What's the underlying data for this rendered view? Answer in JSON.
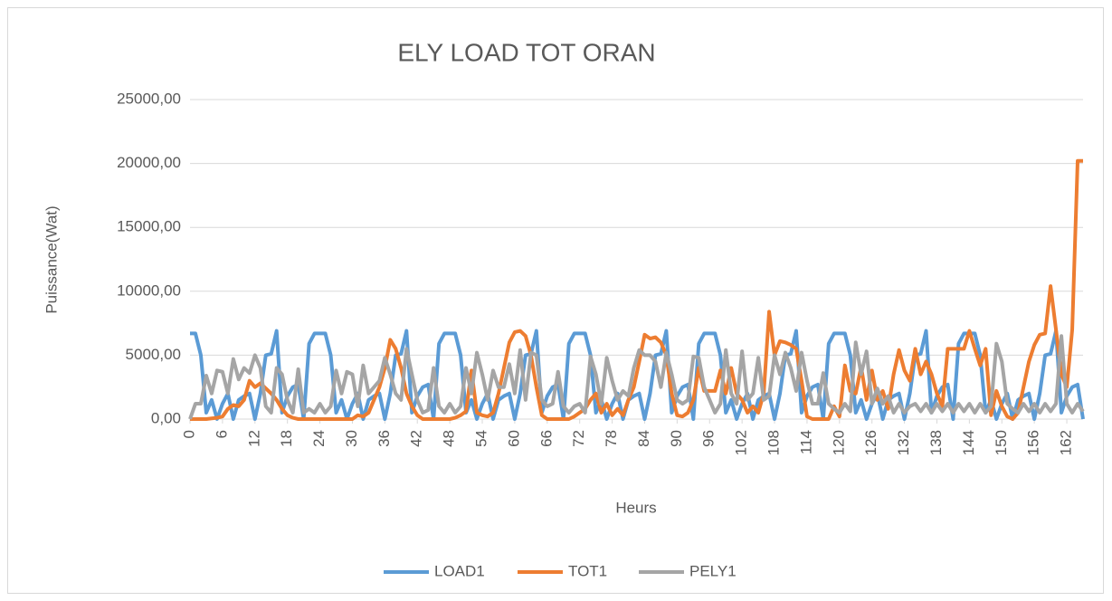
{
  "chart_data": {
    "type": "line",
    "title": "ELY LOAD TOT ORAN",
    "x_label": "Heurs",
    "y_label": "Puissance(Wat)",
    "x": [
      0,
      1,
      2,
      3,
      4,
      5,
      6,
      7,
      8,
      9,
      10,
      11,
      12,
      13,
      14,
      15,
      16,
      17,
      18,
      19,
      20,
      21,
      22,
      23,
      24,
      25,
      26,
      27,
      28,
      29,
      30,
      31,
      32,
      33,
      34,
      35,
      36,
      37,
      38,
      39,
      40,
      41,
      42,
      43,
      44,
      45,
      46,
      47,
      48,
      49,
      50,
      51,
      52,
      53,
      54,
      55,
      56,
      57,
      58,
      59,
      60,
      61,
      62,
      63,
      64,
      65,
      66,
      67,
      68,
      69,
      70,
      71,
      72,
      73,
      74,
      75,
      76,
      77,
      78,
      79,
      80,
      81,
      82,
      83,
      84,
      85,
      86,
      87,
      88,
      89,
      90,
      91,
      92,
      93,
      94,
      95,
      96,
      97,
      98,
      99,
      100,
      101,
      102,
      103,
      104,
      105,
      106,
      107,
      108,
      109,
      110,
      111,
      112,
      113,
      114,
      115,
      116,
      117,
      118,
      119,
      120,
      121,
      122,
      123,
      124,
      125,
      126,
      127,
      128,
      129,
      130,
      131,
      132,
      133,
      134,
      135,
      136,
      137,
      138,
      139,
      140,
      141,
      142,
      143,
      144,
      145,
      146,
      147,
      148,
      149,
      150,
      151,
      152,
      153,
      154,
      155,
      156,
      157,
      158,
      159,
      160,
      161,
      162,
      163,
      164,
      165
    ],
    "xlim": [
      0,
      165
    ],
    "xticks": [
      0,
      6,
      12,
      18,
      24,
      30,
      36,
      42,
      48,
      54,
      60,
      66,
      72,
      78,
      84,
      90,
      96,
      102,
      108,
      114,
      120,
      126,
      132,
      138,
      144,
      150,
      156,
      162
    ],
    "ylim": [
      0,
      25000
    ],
    "yticks": [
      {
        "value": 0,
        "label": "0,00"
      },
      {
        "value": 5000,
        "label": "5000,00"
      },
      {
        "value": 10000,
        "label": "10000,00"
      },
      {
        "value": 15000,
        "label": "15000,00"
      },
      {
        "value": 20000,
        "label": "20000,00"
      },
      {
        "value": 25000,
        "label": "25000,00"
      }
    ],
    "grid": true,
    "legend": "bottom",
    "series": [
      {
        "name": "LOAD1",
        "color": "#5b9bd5",
        "values": [
          6700,
          6700,
          5000,
          500,
          1500,
          0,
          1200,
          2000,
          0,
          1500,
          1800,
          2000,
          0,
          2000,
          5000,
          5100,
          6900,
          500,
          1800,
          2500,
          2700,
          0,
          5900,
          6700,
          6700,
          6700,
          5000,
          500,
          1500,
          0,
          1200,
          2000,
          0,
          1500,
          1800,
          2000,
          0,
          2000,
          5000,
          5100,
          6900,
          500,
          1800,
          2500,
          2700,
          0,
          5900,
          6700,
          6700,
          6700,
          5000,
          500,
          1500,
          0,
          1200,
          2000,
          0,
          1500,
          1800,
          2000,
          0,
          2000,
          5000,
          5100,
          6900,
          500,
          1800,
          2500,
          2700,
          0,
          5900,
          6700,
          6700,
          6700,
          5000,
          500,
          1500,
          0,
          1200,
          2000,
          0,
          1500,
          1800,
          2000,
          0,
          2000,
          5000,
          5100,
          6900,
          500,
          1800,
          2500,
          2700,
          0,
          5900,
          6700,
          6700,
          6700,
          5000,
          500,
          1500,
          0,
          1200,
          2000,
          0,
          1500,
          1800,
          2000,
          0,
          2000,
          5000,
          5100,
          6900,
          500,
          1800,
          2500,
          2700,
          0,
          5900,
          6700,
          6700,
          6700,
          5000,
          500,
          1500,
          0,
          1200,
          2000,
          0,
          1500,
          1800,
          2000,
          0,
          2000,
          5000,
          5100,
          6900,
          500,
          1800,
          2500,
          2700,
          0,
          5900,
          6700,
          6700,
          6700,
          5000,
          500,
          1500,
          0,
          1200,
          2000,
          0,
          1500,
          1800,
          2000,
          0,
          2000,
          5000,
          5100,
          6900,
          500,
          1800,
          2500,
          2700,
          0
        ]
      },
      {
        "name": "TOT1",
        "color": "#ed7d31",
        "values": [
          0,
          0,
          0,
          0,
          50,
          100,
          200,
          800,
          1100,
          1000,
          1500,
          3000,
          2500,
          2800,
          2400,
          2000,
          1500,
          800,
          300,
          100,
          0,
          0,
          0,
          0,
          0,
          0,
          0,
          0,
          0,
          0,
          0,
          300,
          200,
          500,
          1500,
          2500,
          4000,
          6200,
          5500,
          4000,
          2000,
          1000,
          300,
          0,
          0,
          0,
          0,
          0,
          0,
          100,
          300,
          600,
          3800,
          500,
          300,
          200,
          500,
          2000,
          4000,
          6000,
          6800,
          6900,
          6500,
          5000,
          2500,
          300,
          0,
          0,
          0,
          0,
          0,
          200,
          500,
          800,
          1500,
          2000,
          500,
          1200,
          300,
          800,
          300,
          1500,
          2500,
          4500,
          6600,
          6300,
          6400,
          6000,
          5000,
          2000,
          300,
          200,
          500,
          1500,
          4000,
          2200,
          2200,
          2200,
          3800,
          2000,
          4000,
          2000,
          1500,
          500,
          1000,
          500,
          2000,
          8400,
          5000,
          6100,
          6000,
          5800,
          5500,
          3000,
          200,
          0,
          0,
          0,
          0,
          1000,
          200,
          4200,
          2200,
          2000,
          4100,
          1500,
          3800,
          1500,
          2200,
          800,
          3500,
          5400,
          3800,
          3000,
          5500,
          3500,
          4500,
          3500,
          2000,
          1000,
          5500,
          5500,
          5500,
          5500,
          6900,
          5500,
          4200,
          5500,
          300,
          2200,
          1000,
          200,
          0,
          500,
          2500,
          4500,
          5800,
          6600,
          6700,
          10400,
          7000,
          3500,
          2500,
          7000,
          20200,
          20200
        ]
      },
      {
        "name": "PELY1",
        "color": "#a5a5a5",
        "values": [
          0,
          1200,
          1200,
          3400,
          2000,
          3800,
          3700,
          2000,
          4700,
          3100,
          4000,
          3600,
          5000,
          4000,
          1000,
          500,
          4000,
          3500,
          1500,
          500,
          3900,
          500,
          800,
          500,
          1200,
          500,
          1000,
          3800,
          2000,
          3700,
          3500,
          1000,
          4200,
          2000,
          2500,
          3000,
          4800,
          3500,
          2000,
          1500,
          5500,
          3500,
          1500,
          500,
          700,
          4000,
          1000,
          500,
          1200,
          500,
          1000,
          4000,
          2000,
          5200,
          3500,
          1500,
          3800,
          2500,
          2500,
          4300,
          2000,
          5400,
          1500,
          5200,
          5000,
          1500,
          1000,
          1200,
          3700,
          1000,
          500,
          1000,
          1200,
          500,
          4900,
          3500,
          1200,
          4800,
          3000,
          1500,
          2200,
          1800,
          4000,
          5400,
          5000,
          5000,
          4500,
          2500,
          5200,
          3500,
          1500,
          1200,
          1500,
          4900,
          4800,
          2500,
          1500,
          500,
          1200,
          5400,
          2000,
          1200,
          5300,
          1500,
          2000,
          4800,
          1500,
          1800,
          5000,
          3500,
          5200,
          4000,
          2200,
          5200,
          3000,
          1200,
          1200,
          3600,
          1200,
          800,
          500,
          1200,
          600,
          6000,
          3500,
          5300,
          1200,
          2400,
          1200,
          1800,
          500,
          1200,
          500,
          1000,
          1200,
          600,
          1200,
          500,
          1200,
          600,
          1200,
          500,
          1200,
          600,
          1200,
          500,
          1200,
          500,
          1000,
          5900,
          4500,
          1200,
          800,
          500,
          1200,
          600,
          1200,
          500,
          1200,
          600,
          1200,
          6500,
          1200,
          500,
          1200,
          600
        ]
      }
    ]
  }
}
